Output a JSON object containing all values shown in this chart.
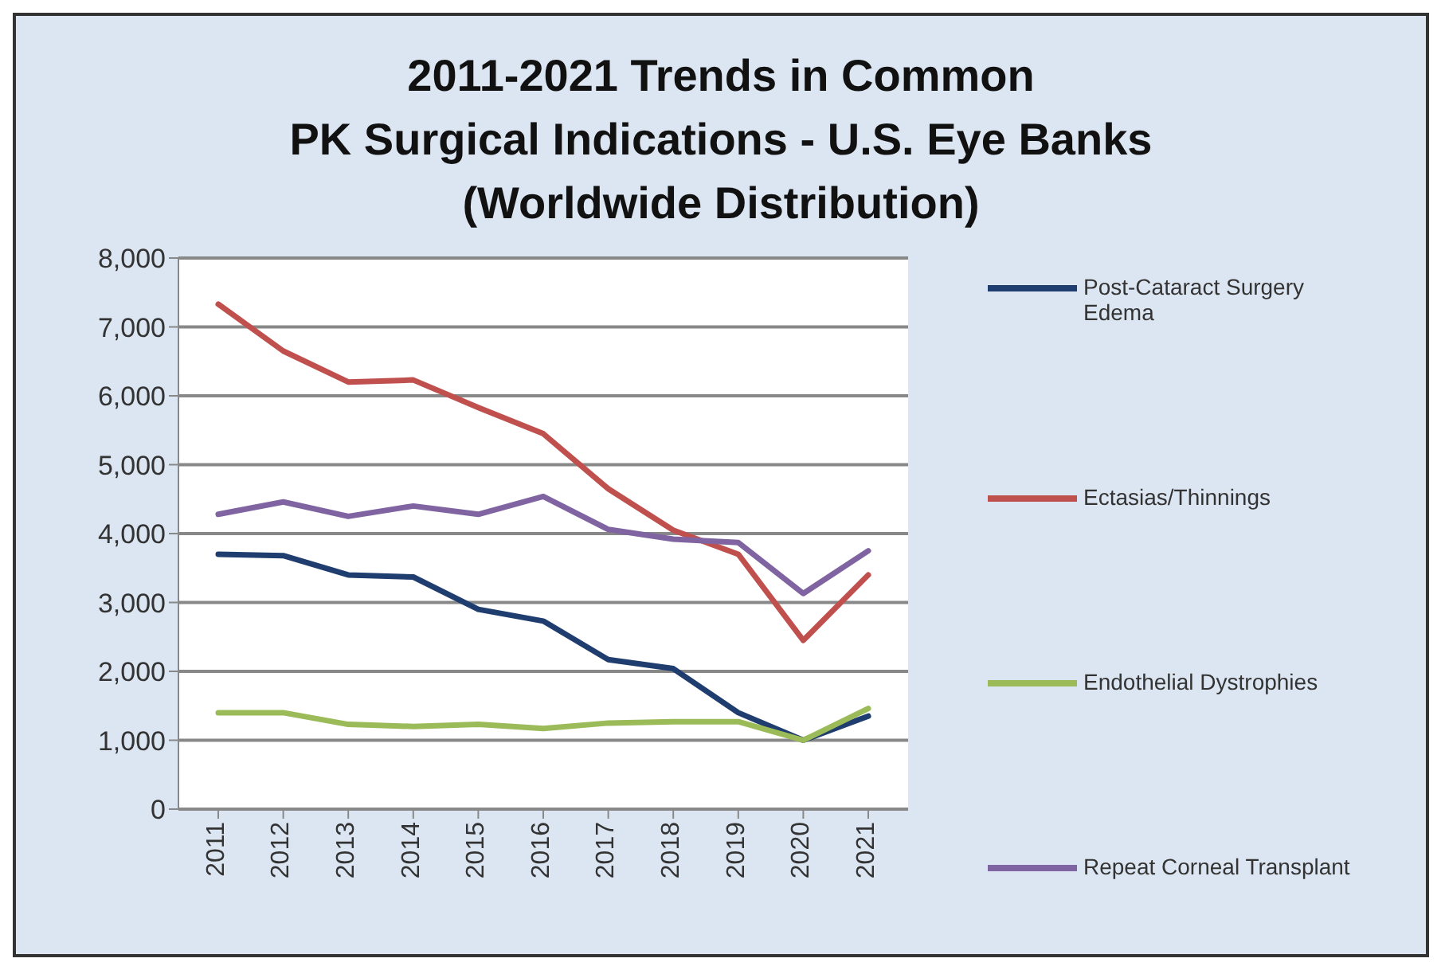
{
  "chart_data": {
    "type": "line",
    "title": "2011-2021 Trends in Common\nPK Surgical Indications - U.S. Eye Banks\n(Worldwide Distribution)",
    "categories": [
      "2011",
      "2012",
      "2013",
      "2014",
      "2015",
      "2016",
      "2017",
      "2018",
      "2019",
      "2020",
      "2021"
    ],
    "series": [
      {
        "name": "Post-Cataract Surgery Edema",
        "color": "#1f3d6e",
        "values": [
          3700,
          3680,
          3400,
          3370,
          2900,
          2730,
          2170,
          2040,
          1400,
          1000,
          1350
        ]
      },
      {
        "name": "Ectasias/Thinnings",
        "color": "#c0504d",
        "values": [
          7330,
          6650,
          6200,
          6230,
          5830,
          5450,
          4650,
          4050,
          3700,
          2450,
          3400
        ]
      },
      {
        "name": "Endothelial Dystrophies",
        "color": "#9bbb59",
        "values": [
          1400,
          1400,
          1230,
          1200,
          1230,
          1170,
          1250,
          1270,
          1270,
          1000,
          1460
        ]
      },
      {
        "name": "Repeat Corneal Transplant",
        "color": "#8064a2",
        "values": [
          4280,
          4460,
          4250,
          4400,
          4280,
          4540,
          4060,
          3920,
          3870,
          3130,
          3750
        ]
      }
    ],
    "ylim": [
      0,
      8000
    ],
    "yticks": [
      0,
      {
        "value": 1000,
        "label": "1,000"
      },
      {
        "value": 2000,
        "label": "2,000"
      },
      {
        "value": 3000,
        "label": "3,000"
      },
      {
        "value": 4000,
        "label": "4,000"
      },
      {
        "value": 5000,
        "label": "5,000"
      },
      {
        "value": 6000,
        "label": "6,000"
      },
      {
        "value": 7000,
        "label": "7,000"
      },
      {
        "value": 8000,
        "label": "8,000"
      }
    ],
    "grid": "y",
    "legend": "right",
    "marker": "none"
  }
}
